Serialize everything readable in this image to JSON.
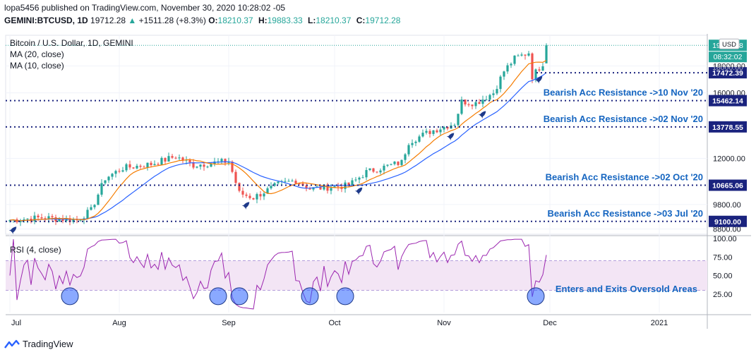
{
  "header": {
    "line1": "lopa5456 published on TradingView.com, November 30, 2020 10:28:02 -05",
    "symbol": "GEMINI:BTCUSD, 1D",
    "last": "19712.28",
    "change": "+1511.28 (+8.3%)",
    "ohlc": [
      {
        "k": "O:",
        "v": "18210.37"
      },
      {
        "k": "H:",
        "v": "19883.33"
      },
      {
        "k": "L:",
        "v": "18210.37"
      },
      {
        "k": "C:",
        "v": "19712.28"
      }
    ]
  },
  "legend": {
    "title": "Bitcoin / U.S. Dollar, 1D, GEMINI",
    "ma20": "MA (20, close)",
    "ma10": "MA (10, close)",
    "rsi": "RSI (4, close)"
  },
  "price_badges": {
    "last": "19712.28",
    "currency": "USD",
    "countdown": "08:32:02",
    "ma_value": "18000.00"
  },
  "footer": {
    "brand": "TradingView"
  },
  "colors": {
    "up": "#26a69a",
    "down": "#ef5350",
    "ma20": "#f57c00",
    "ma10": "#2962ff",
    "rsi": "#9c27b0",
    "resistance": "#1a237e",
    "annotation": "#1565c0",
    "rsi_band": "#f3e5f5"
  },
  "chart_data": [
    {
      "type": "candlestick",
      "title": "Bitcoin / U.S. Dollar, 1D, GEMINI",
      "x_ticks": [
        "Jul",
        "Aug",
        "Sep",
        "Oct",
        "Nov",
        "Dec",
        "2021"
      ],
      "y_ticks": [
        "8800.00",
        "9800.00",
        "12000.00",
        "16000.00",
        "18000.00"
      ],
      "y_scale": "log",
      "ylim": [
        8600,
        20600
      ],
      "anchors": [
        [
          "2020-07-01",
          9150
        ],
        [
          "2020-07-10",
          9250
        ],
        [
          "2020-07-20",
          9150
        ],
        [
          "2020-07-24",
          9550
        ],
        [
          "2020-07-28",
          11000
        ],
        [
          "2020-08-02",
          11500
        ],
        [
          "2020-08-10",
          11700
        ],
        [
          "2020-08-17",
          12100
        ],
        [
          "2020-08-22",
          11650
        ],
        [
          "2020-09-01",
          11850
        ],
        [
          "2020-09-04",
          10300
        ],
        [
          "2020-09-08",
          10100
        ],
        [
          "2020-09-15",
          10700
        ],
        [
          "2020-09-20",
          10900
        ],
        [
          "2020-09-24",
          10500
        ],
        [
          "2020-10-05",
          10650
        ],
        [
          "2020-10-10",
          11300
        ],
        [
          "2020-10-20",
          11800
        ],
        [
          "2020-10-22",
          12900
        ],
        [
          "2020-10-28",
          13500
        ],
        [
          "2020-11-04",
          14000
        ],
        [
          "2020-11-06",
          15400
        ],
        [
          "2020-11-10",
          15300
        ],
        [
          "2020-11-15",
          16000
        ],
        [
          "2020-11-18",
          17600
        ],
        [
          "2020-11-21",
          18600
        ],
        [
          "2020-11-25",
          19100
        ],
        [
          "2020-11-26",
          17200
        ],
        [
          "2020-11-29",
          18210
        ],
        [
          "2020-11-30",
          19712
        ]
      ],
      "resistance_levels": [
        {
          "value": 17472.39,
          "label": "17472.39",
          "annotation": ""
        },
        {
          "value": 15462.14,
          "label": "15462.14",
          "annotation": "Bearish Acc Resistance ->10 Nov '20"
        },
        {
          "value": 13778.55,
          "label": "13778.55",
          "annotation": "Bearish Acc Resistance ->02 Nov '20"
        },
        {
          "value": 10665.06,
          "label": "10665.06",
          "annotation": "Bearish Acc Resistance ->02 Oct '20"
        },
        {
          "value": 9100.0,
          "label": "9100.00",
          "annotation": "Bearish Acc Resistance ->03 Jul '20"
        }
      ],
      "rocket_markers": [
        "2020-07-02",
        "2020-09-06",
        "2020-10-08",
        "2020-11-03",
        "2020-11-12",
        "2020-11-28"
      ]
    },
    {
      "type": "line",
      "title": "RSI (4, close)",
      "y_ticks": [
        "25.00",
        "50.00",
        "75.00",
        "100.00"
      ],
      "ylim": [
        0,
        100
      ],
      "overbought": 70,
      "oversold": 30,
      "annotation": "Enters and Exits Oversold Areas",
      "oversold_circles": [
        "2020-07-18",
        "2020-08-29",
        "2020-09-04",
        "2020-09-24",
        "2020-10-04",
        "2020-11-27"
      ]
    }
  ]
}
